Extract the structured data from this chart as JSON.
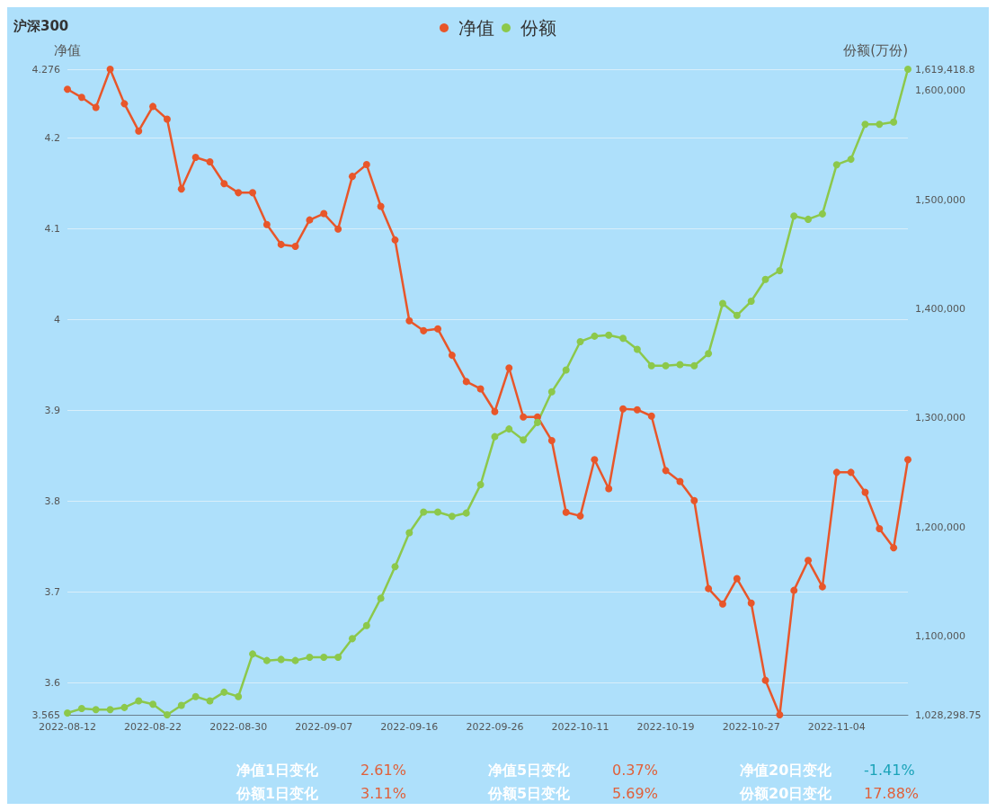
{
  "chart_data": {
    "type": "line",
    "title": "沪深300",
    "ylabel": "净值",
    "y2label": "份额(万份)",
    "categories": [
      "2022-08-12",
      null,
      null,
      null,
      null,
      null,
      "2022-08-22",
      null,
      null,
      null,
      null,
      null,
      "2022-08-30",
      null,
      null,
      null,
      null,
      null,
      "2022-09-07",
      null,
      null,
      null,
      null,
      null,
      "2022-09-16",
      null,
      null,
      null,
      null,
      null,
      "2022-09-26",
      null,
      null,
      null,
      null,
      null,
      "2022-10-11",
      null,
      null,
      null,
      null,
      null,
      "2022-10-19",
      null,
      null,
      null,
      null,
      null,
      "2022-10-27",
      null,
      null,
      null,
      null,
      null,
      "2022-11-04",
      null,
      null,
      null,
      null,
      null
    ],
    "series": [
      {
        "name": "净值",
        "color": "#e8562a",
        "values": [
          4.254,
          4.245,
          4.234,
          4.276,
          4.238,
          4.208,
          4.235,
          4.221,
          4.144,
          4.179,
          4.174,
          4.15,
          4.14,
          4.14,
          4.105,
          4.083,
          4.081,
          4.11,
          4.117,
          4.1,
          4.158,
          4.171,
          4.125,
          4.088,
          3.999,
          3.988,
          3.99,
          3.961,
          3.932,
          3.924,
          3.899,
          3.947,
          3.893,
          3.893,
          3.867,
          3.788,
          3.784,
          3.846,
          3.814,
          3.902,
          3.901,
          3.894,
          3.834,
          3.822,
          3.801,
          3.704,
          3.687,
          3.715,
          3.688,
          3.603,
          3.565,
          3.702,
          3.735,
          3.706,
          3.832,
          3.832,
          3.81,
          3.77,
          3.749,
          3.846
        ]
      },
      {
        "name": "份额",
        "color": "#8cc84b",
        "axis": "y2",
        "values": [
          1030000,
          1034000,
          1033000,
          1033000,
          1035000,
          1041000,
          1038000,
          1028298.75,
          1037000,
          1045000,
          1041000,
          1049000,
          1045000,
          1084000,
          1078000,
          1079000,
          1078000,
          1081000,
          1081000,
          1081000,
          1098000,
          1110000,
          1135000,
          1164000,
          1195000,
          1214000,
          1214000,
          1210000,
          1213000,
          1239000,
          1283000,
          1290000,
          1280000,
          1296000,
          1324000,
          1344000,
          1370000,
          1375000,
          1376000,
          1373000,
          1363000,
          1348000,
          1348000,
          1349000,
          1348000,
          1359000,
          1405000,
          1394000,
          1407000,
          1427000,
          1435000,
          1485000,
          1482000,
          1487000,
          1532000,
          1537000,
          1569000,
          1569000,
          1571000,
          1619418.8
        ]
      }
    ],
    "ylim": [
      3.565,
      4.276
    ],
    "yticks": [
      3.565,
      3.6,
      3.7,
      3.8,
      3.9,
      4,
      4.1,
      4.2,
      4.276
    ],
    "y2lim": [
      1028298.75,
      1619418.8
    ],
    "y2ticks": [
      {
        "value": 1028298.75,
        "label": "1,028,298.75"
      },
      {
        "value": 1100000,
        "label": "1,100,000"
      },
      {
        "value": 1200000,
        "label": "1,200,000"
      },
      {
        "value": 1300000,
        "label": "1,300,000"
      },
      {
        "value": 1400000,
        "label": "1,400,000"
      },
      {
        "value": 1500000,
        "label": "1,500,000"
      },
      {
        "value": 1600000,
        "label": "1,600,000"
      },
      {
        "value": 1619418.8,
        "label": "1,619,418.8"
      }
    ],
    "grid": "y",
    "legend": "top",
    "marker": "circle",
    "line_style": "solid",
    "annotations": [
      "净值1日变化",
      "2.61%",
      "净值5日变化",
      "0.37%",
      "净值20日变化",
      "-1.41%",
      "份额1日变化",
      "3.11%",
      "份额5日变化",
      "5.69%",
      "份额20日变化",
      "17.88%"
    ]
  }
}
